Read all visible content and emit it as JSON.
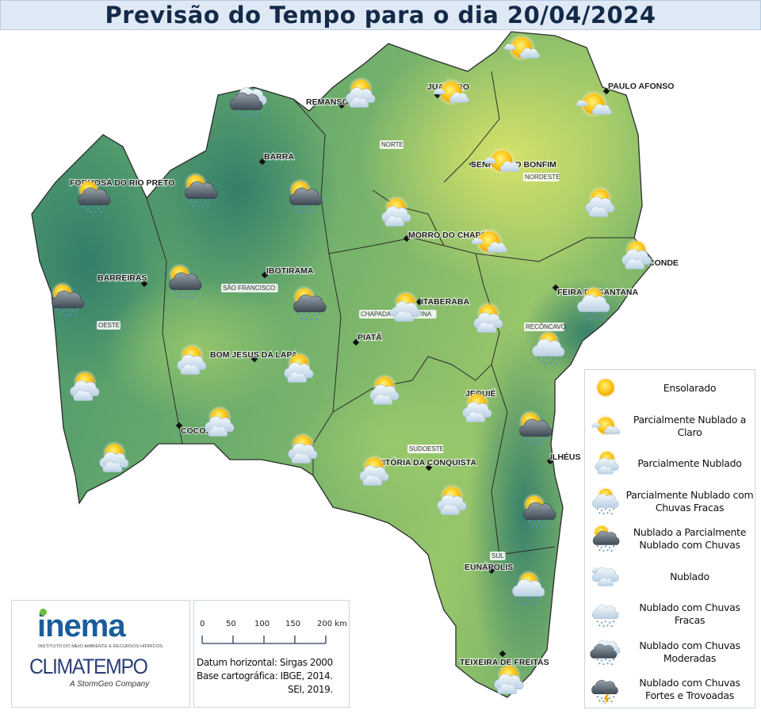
{
  "header": {
    "title": "Previsão do Tempo para o dia 20/04/2024"
  },
  "colors": {
    "title_bg": "#dfe9f5",
    "title_text": "#132a48",
    "map_dark_green": "#3d8a6e",
    "map_light_green": "#8fbf6a",
    "map_yellow_green": "#c9df6b"
  },
  "cities": [
    "REMANSO",
    "JUAZEIRO",
    "PAULO AFONSO",
    "BARRA",
    "SENHOR DO BONFIM",
    "FORMOSA DO RIO PRETO",
    "MORRO DO CHAPÉU",
    "CONDE",
    "BARREIRAS",
    "IBOTIRAMA",
    "FEIRA DE SANTANA",
    "ITABERABA",
    "PIATÃ",
    "BOM JESUS DA LAPA",
    "JEQUIÉ",
    "COCOS",
    "ILHÉUS",
    "VITÓRIA DA CONQUISTA",
    "EUNÁPOLIS",
    "TEIXEIRA DE FREITAS"
  ],
  "regions": [
    "NORTE",
    "NORDESTE",
    "SÃO FRANCISCO",
    "OESTE",
    "CHAPADA DIAMANTINA",
    "RECÔNCAVO",
    "SUDOESTE",
    "SUL"
  ],
  "forecast_icons": [
    "nublado-chuvas-moderadas",
    "parcialmente-nublado",
    "parcialmente-nublado-a-claro",
    "parcialmente-nublado-a-claro",
    "parcialmente-nublado-a-claro",
    "parcialmente-nublado-a-claro",
    "nublado-a-parcialmente-nublado-com-chuvas",
    "nublado-a-parcialmente-nublado-com-chuvas",
    "nublado-a-parcialmente-nublado-com-chuvas",
    "parcialmente-nublado",
    "parcialmente-nublado",
    "parcialmente-nublado-a-claro",
    "parcialmente-nublado",
    "nublado-a-parcialmente-nublado-com-chuvas",
    "nublado-a-parcialmente-nublado-com-chuvas",
    "nublado-a-parcialmente-nublado-com-chuvas",
    "parcialmente-nublado",
    "parcialmente-nublado",
    "parcialmente-nublado-com-chuvas-fracas",
    "parcialmente-nublado-com-chuvas-fracas",
    "parcialmente-nublado",
    "parcialmente-nublado",
    "parcialmente-nublado",
    "parcialmente-nublado",
    "parcialmente-nublado",
    "parcialmente-nublado",
    "nublado-a-parcialmente-nublado-com-chuvas",
    "parcialmente-nublado",
    "parcialmente-nublado",
    "parcialmente-nublado",
    "parcialmente-nublado",
    "nublado-a-parcialmente-nublado-com-chuvas",
    "parcialmente-nublado-com-chuvas-fracas",
    "parcialmente-nublado"
  ],
  "legend": [
    {
      "icon": "ensolarado",
      "label": "Ensolarado"
    },
    {
      "icon": "parcialmente-nublado-a-claro",
      "label": "Parcialmente Nublado a Claro"
    },
    {
      "icon": "parcialmente-nublado",
      "label": "Parcialmente Nublado"
    },
    {
      "icon": "parcialmente-nublado-com-chuvas-fracas",
      "label": "Parcialmente Nublado com Chuvas Fracas"
    },
    {
      "icon": "nublado-a-parcialmente-nublado-com-chuvas",
      "label": "Nublado a Parcialmente Nublado com Chuvas"
    },
    {
      "icon": "nublado",
      "label": "Nublado"
    },
    {
      "icon": "nublado-com-chuvas-fracas",
      "label": "Nublado com Chuvas Fracas"
    },
    {
      "icon": "nublado-chuvas-moderadas",
      "label": "Nublado com Chuvas Moderadas"
    },
    {
      "icon": "nublado-chuvas-fortes-trovoadas",
      "label": "Nublado com Chuvas Fortes e Trovoadas"
    }
  ],
  "logos": {
    "inema": "inema",
    "inema_subtitle": "INSTITUTO DO MEIO AMBIENTE E RECURSOS HÍDRICOS",
    "climatempo": "CLIMATEMPO",
    "climatempo_subtitle": "A StormGeo Company"
  },
  "scale": {
    "ticks": [
      "0",
      "50",
      "100",
      "150",
      "200 km"
    ]
  },
  "credits": {
    "datum": "Datum horizontal: Sirgas 2000",
    "base": "Base cartográfica: IBGE, 2014.",
    "sei": "SEI, 2019."
  }
}
